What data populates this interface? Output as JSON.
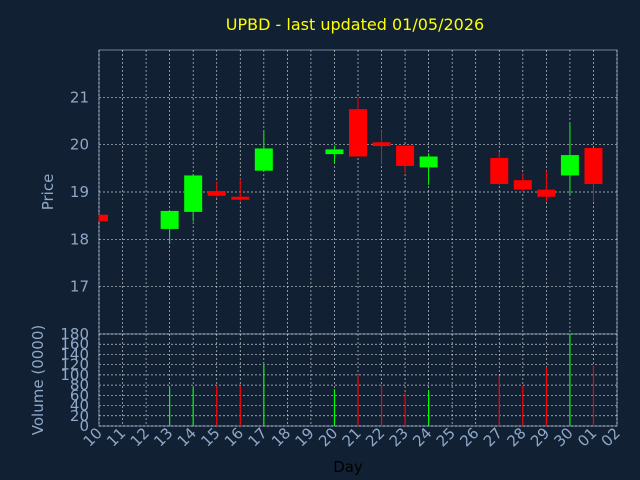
{
  "chart_data": [
    {
      "type": "candlestick",
      "title": "UPBD - last updated 01/05/2026",
      "ylabel": "Price",
      "ylim": [
        16,
        22
      ],
      "yticks": [
        17,
        18,
        19,
        20,
        21
      ],
      "grid": true,
      "colors": {
        "up": "#00ff00",
        "down": "#ff0000",
        "grid": "#ffffff",
        "title": "#ffff00",
        "axis_text": "#8fa8c8"
      },
      "categories": [
        "10",
        "11",
        "12",
        "13",
        "14",
        "15",
        "16",
        "17",
        "18",
        "19",
        "20",
        "21",
        "22",
        "23",
        "24",
        "25",
        "26",
        "27",
        "28",
        "29",
        "30",
        "01",
        "02"
      ],
      "candles": [
        {
          "day": "10",
          "open": 18.52,
          "close": 18.38,
          "high": 18.52,
          "low": 18.38
        },
        {
          "day": "13",
          "open": 18.22,
          "close": 18.6,
          "high": 18.6,
          "low": 17.9
        },
        {
          "day": "14",
          "open": 18.58,
          "close": 19.35,
          "high": 19.38,
          "low": 18.38
        },
        {
          "day": "15",
          "open": 19.02,
          "close": 18.92,
          "high": 19.22,
          "low": 18.88
        },
        {
          "day": "16",
          "open": 18.9,
          "close": 18.87,
          "high": 19.28,
          "low": 18.8
        },
        {
          "day": "17",
          "open": 19.45,
          "close": 19.92,
          "high": 20.3,
          "low": 19.45
        },
        {
          "day": "20",
          "open": 19.8,
          "close": 19.9,
          "high": 19.98,
          "low": 19.62
        },
        {
          "day": "21",
          "open": 20.75,
          "close": 19.75,
          "high": 21.0,
          "low": 19.75
        },
        {
          "day": "22",
          "open": 20.05,
          "close": 19.97,
          "high": 20.3,
          "low": 19.58
        },
        {
          "day": "23",
          "open": 19.98,
          "close": 19.55,
          "high": 19.98,
          "low": 19.4
        },
        {
          "day": "24",
          "open": 19.52,
          "close": 19.75,
          "high": 19.82,
          "low": 19.15
        },
        {
          "day": "27",
          "open": 19.72,
          "close": 19.17,
          "high": 19.85,
          "low": 19.15
        },
        {
          "day": "28",
          "open": 19.25,
          "close": 19.05,
          "high": 19.4,
          "low": 19.0
        },
        {
          "day": "29",
          "open": 19.05,
          "close": 18.9,
          "high": 19.45,
          "low": 18.8
        },
        {
          "day": "30",
          "open": 19.35,
          "close": 19.78,
          "high": 20.45,
          "low": 18.95
        },
        {
          "day": "01",
          "open": 19.93,
          "close": 19.17,
          "high": 19.93,
          "low": 18.8
        }
      ]
    },
    {
      "type": "bar",
      "ylabel": "Volume (0000)",
      "xlabel": "Day",
      "ylim": [
        0,
        180
      ],
      "yticks": [
        0,
        20,
        40,
        60,
        80,
        100,
        120,
        140,
        160,
        180
      ],
      "categories": [
        "10",
        "11",
        "12",
        "13",
        "14",
        "15",
        "16",
        "17",
        "18",
        "19",
        "20",
        "21",
        "22",
        "23",
        "24",
        "25",
        "26",
        "27",
        "28",
        "29",
        "30",
        "01",
        "02"
      ],
      "volumes": [
        {
          "day": "10",
          "value": 0,
          "dir": "down"
        },
        {
          "day": "13",
          "value": 75,
          "dir": "up"
        },
        {
          "day": "14",
          "value": 75,
          "dir": "up"
        },
        {
          "day": "15",
          "value": 78,
          "dir": "down"
        },
        {
          "day": "16",
          "value": 78,
          "dir": "down"
        },
        {
          "day": "17",
          "value": 120,
          "dir": "up"
        },
        {
          "day": "20",
          "value": 72,
          "dir": "up"
        },
        {
          "day": "21",
          "value": 100,
          "dir": "down"
        },
        {
          "day": "22",
          "value": 80,
          "dir": "down"
        },
        {
          "day": "23",
          "value": 65,
          "dir": "down"
        },
        {
          "day": "24",
          "value": 70,
          "dir": "up"
        },
        {
          "day": "27",
          "value": 98,
          "dir": "down"
        },
        {
          "day": "28",
          "value": 78,
          "dir": "down"
        },
        {
          "day": "29",
          "value": 115,
          "dir": "down"
        },
        {
          "day": "30",
          "value": 180,
          "dir": "up"
        },
        {
          "day": "01",
          "value": 118,
          "dir": "down"
        }
      ]
    }
  ]
}
